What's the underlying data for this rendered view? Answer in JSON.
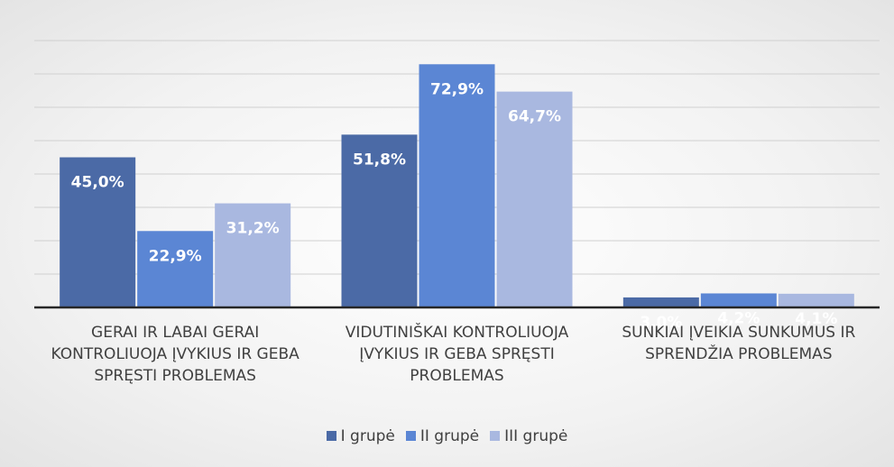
{
  "chart_data": {
    "type": "bar",
    "categories": [
      "GERAI IR LABAI GERAI KONTROLIUOJA ĮVYKIUS IR GEBA SPRĘSTI PROBLEMAS",
      "VIDUTINIŠKAI KONTROLIUOJA ĮVYKIUS IR GEBA SPRĘSTI PROBLEMAS",
      "SUNKIAI ĮVEIKIA SUNKUMUS IR SPRENDŽIA PROBLEMAS"
    ],
    "series": [
      {
        "name": "I grupė",
        "color": "#4b6aa6",
        "values": [
          45.0,
          51.8,
          3.0
        ],
        "value_labels": [
          "45,0%",
          "51,8%",
          "3,0%"
        ]
      },
      {
        "name": "II grupė",
        "color": "#5b86d4",
        "values": [
          22.9,
          72.9,
          4.2
        ],
        "value_labels": [
          "22,9%",
          "72,9%",
          "4,2%"
        ]
      },
      {
        "name": "III grupė",
        "color": "#a9b8e0",
        "values": [
          31.2,
          64.7,
          4.1
        ],
        "value_labels": [
          "31,2%",
          "64,7%",
          "4,1%"
        ]
      }
    ],
    "ylim": [
      0,
      80
    ],
    "yticks": [
      0,
      10,
      20,
      30,
      40,
      50,
      60,
      70,
      80
    ],
    "grid": true,
    "legend": "bottom"
  }
}
